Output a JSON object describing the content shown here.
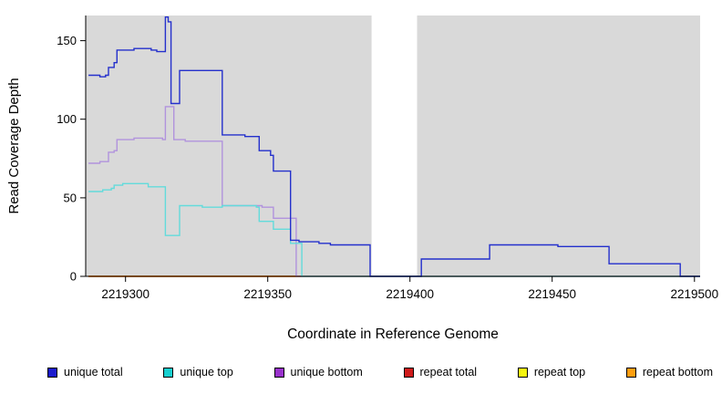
{
  "figure": {
    "background": "#ffffff"
  },
  "chart_data": {
    "type": "line",
    "line_style": "step-after",
    "title": "",
    "xlabel": "Coordinate in Reference Genome",
    "ylabel": "Read Coverage Depth",
    "xlim": [
      2219286,
      2219502
    ],
    "ylim": [
      0,
      166
    ],
    "x_ticks": [
      2219300,
      2219350,
      2219400,
      2219450,
      2219500
    ],
    "y_ticks": [
      0,
      50,
      100,
      150
    ],
    "plot_background": "#d9d9d9",
    "grid": false,
    "gap_region": {
      "x_start": 2219386.5,
      "x_end": 2219402.5,
      "color": "#ffffff"
    },
    "series": [
      {
        "name": "repeat top",
        "color": "#f5f50f",
        "points": [
          [
            2219287,
            0
          ],
          [
            2219502,
            0
          ]
        ]
      },
      {
        "name": "repeat total",
        "color": "#cf1b1b",
        "points": [
          [
            2219287,
            0
          ],
          [
            2219502,
            0
          ]
        ]
      },
      {
        "name": "repeat bottom",
        "color": "#ff9e0f",
        "points": [
          [
            2219287,
            0
          ],
          [
            2219361,
            0
          ]
        ]
      },
      {
        "name": "unique bottom",
        "color": "#b193dd",
        "points": [
          [
            2219287,
            72
          ],
          [
            2219291,
            73
          ],
          [
            2219294,
            79
          ],
          [
            2219296,
            80
          ],
          [
            2219297,
            87
          ],
          [
            2219303,
            88
          ],
          [
            2219311,
            88
          ],
          [
            2219313,
            87
          ],
          [
            2219314,
            108
          ],
          [
            2219316,
            108
          ],
          [
            2219317,
            87
          ],
          [
            2219320,
            87
          ],
          [
            2219321,
            86
          ],
          [
            2219333,
            86
          ],
          [
            2219334,
            45
          ],
          [
            2219347,
            45
          ],
          [
            2219348,
            44
          ],
          [
            2219351,
            44
          ],
          [
            2219352,
            37
          ],
          [
            2219359,
            37
          ],
          [
            2219360,
            0
          ],
          [
            2219502,
            0
          ]
        ]
      },
      {
        "name": "unique top",
        "color": "#63dbdb",
        "points": [
          [
            2219287,
            54
          ],
          [
            2219292,
            55
          ],
          [
            2219295,
            56
          ],
          [
            2219296,
            58
          ],
          [
            2219299,
            59
          ],
          [
            2219306,
            59
          ],
          [
            2219308,
            57
          ],
          [
            2219313,
            57
          ],
          [
            2219314,
            26
          ],
          [
            2219318,
            26
          ],
          [
            2219319,
            45
          ],
          [
            2219326,
            45
          ],
          [
            2219327,
            44
          ],
          [
            2219334,
            45
          ],
          [
            2219342,
            45
          ],
          [
            2219346,
            44
          ],
          [
            2219347,
            35
          ],
          [
            2219351,
            35
          ],
          [
            2219352,
            30
          ],
          [
            2219357,
            30
          ],
          [
            2219358,
            21
          ],
          [
            2219361,
            21
          ],
          [
            2219362,
            0
          ],
          [
            2219502,
            0
          ]
        ]
      },
      {
        "name": "unique total",
        "color": "#2430cc",
        "points": [
          [
            2219287,
            128
          ],
          [
            2219291,
            127
          ],
          [
            2219293,
            128
          ],
          [
            2219294,
            133
          ],
          [
            2219296,
            136
          ],
          [
            2219297,
            144
          ],
          [
            2219303,
            145
          ],
          [
            2219309,
            144
          ],
          [
            2219311,
            143
          ],
          [
            2219313,
            143
          ],
          [
            2219314,
            165
          ],
          [
            2219315,
            162
          ],
          [
            2219316,
            110
          ],
          [
            2219318,
            110
          ],
          [
            2219319,
            131
          ],
          [
            2219333,
            131
          ],
          [
            2219334,
            90
          ],
          [
            2219341,
            90
          ],
          [
            2219342,
            89
          ],
          [
            2219346,
            89
          ],
          [
            2219347,
            80
          ],
          [
            2219350,
            80
          ],
          [
            2219351,
            77
          ],
          [
            2219352,
            67
          ],
          [
            2219357,
            67
          ],
          [
            2219358,
            23
          ],
          [
            2219361,
            22
          ],
          [
            2219367,
            22
          ],
          [
            2219368,
            21
          ],
          [
            2219371,
            21
          ],
          [
            2219372,
            20
          ],
          [
            2219385,
            20
          ],
          [
            2219386,
            0
          ],
          [
            2219403,
            0
          ],
          [
            2219404,
            11
          ],
          [
            2219427,
            11
          ],
          [
            2219428,
            20
          ],
          [
            2219451,
            20
          ],
          [
            2219452,
            19
          ],
          [
            2219469,
            19
          ],
          [
            2219470,
            8
          ],
          [
            2219494,
            8
          ],
          [
            2219495,
            0
          ],
          [
            2219502,
            0
          ]
        ]
      }
    ],
    "legend": {
      "position": "bottom",
      "items": [
        {
          "label": "unique total",
          "color": "#1a1acc"
        },
        {
          "label": "unique top",
          "color": "#17cfcf"
        },
        {
          "label": "unique bottom",
          "color": "#9932cc"
        },
        {
          "label": "repeat total",
          "color": "#cf1b1b"
        },
        {
          "label": "repeat top",
          "color": "#f5f50f"
        },
        {
          "label": "repeat bottom",
          "color": "#ff9e0f"
        }
      ]
    }
  }
}
